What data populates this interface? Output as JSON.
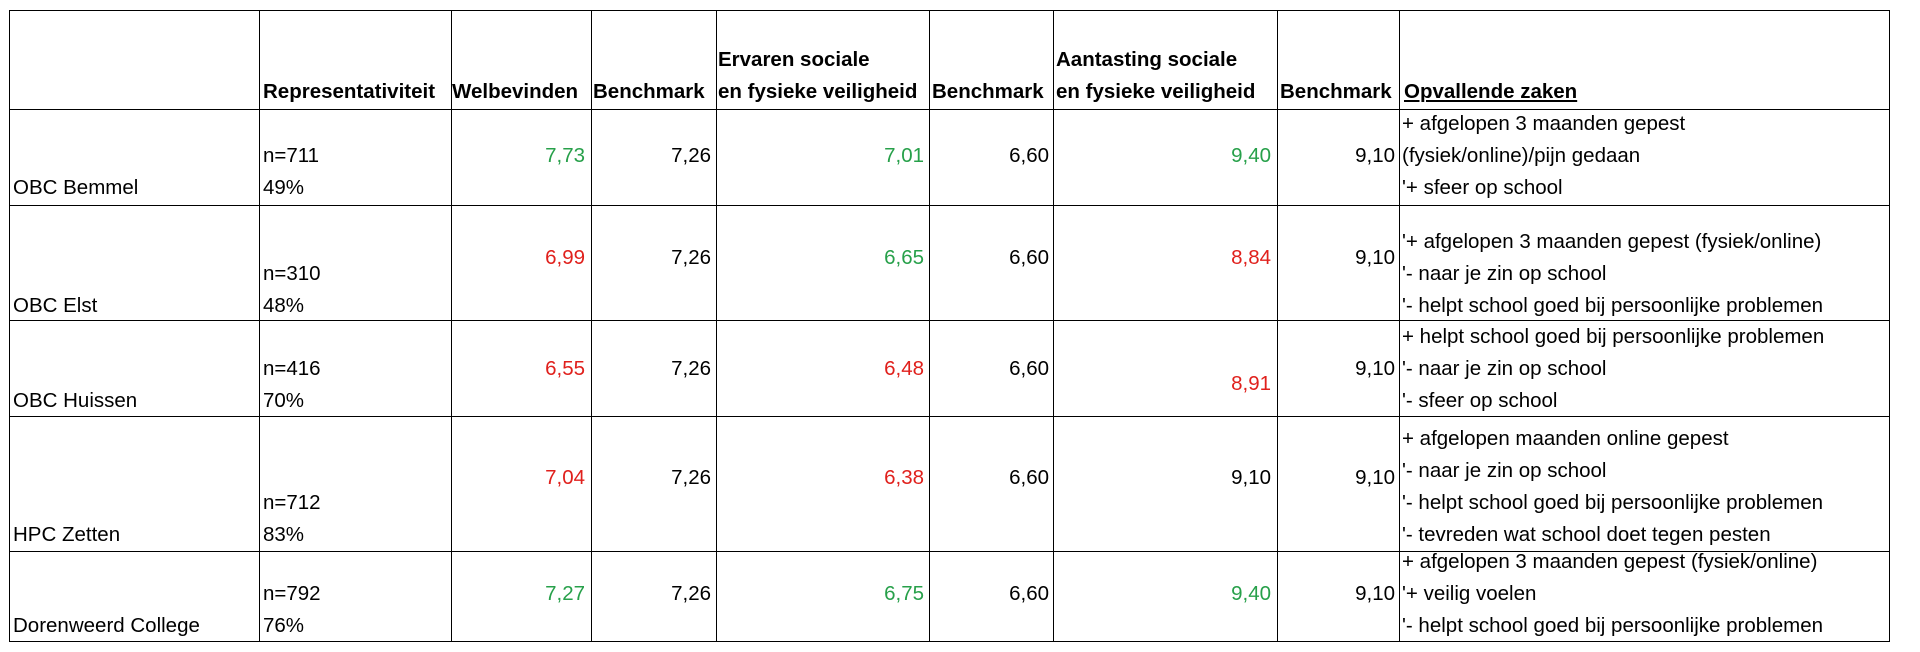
{
  "header": {
    "representativiteit": "Representativiteit",
    "welbevinden": "Welbevinden",
    "benchmark1": "Benchmark",
    "ervaren_line1": "Ervaren sociale",
    "ervaren_line2": "en fysieke veiligheid",
    "benchmark2": "Benchmark",
    "aantasting_line1": "Aantasting sociale",
    "aantasting_line2": "en fysieke veiligheid",
    "benchmark3": "Benchmark",
    "opvallende": "Opvallende zaken"
  },
  "colors": {
    "good": "#27a04a",
    "bad": "#e0201c",
    "neutral": "#000000"
  },
  "rows": [
    {
      "school": "OBC Bemmel",
      "n": "n=711",
      "pct": "49%",
      "welbevinden": "7,73",
      "welbevinden_status": "good",
      "bench1": "7,26",
      "ervaren": "7,01",
      "ervaren_status": "good",
      "bench2": "6,60",
      "aantasting": "9,40",
      "aantasting_status": "good",
      "bench3": "9,10",
      "notes": [
        "+ afgelopen 3 maanden gepest",
        "(fysiek/online)/pijn gedaan",
        "'+ sfeer op school"
      ]
    },
    {
      "school": "OBC Elst",
      "n": "n=310",
      "pct": "48%",
      "welbevinden": "6,99",
      "welbevinden_status": "bad",
      "bench1": "7,26",
      "ervaren": "6,65",
      "ervaren_status": "good",
      "bench2": "6,60",
      "aantasting": "8,84",
      "aantasting_status": "bad",
      "bench3": "9,10",
      "notes": [
        "'+ afgelopen 3 maanden gepest (fysiek/online)",
        "'- naar je zin op school",
        "'- helpt school goed bij persoonlijke problemen"
      ]
    },
    {
      "school": "OBC Huissen",
      "n": "n=416",
      "pct": "70%",
      "welbevinden": "6,55",
      "welbevinden_status": "bad",
      "bench1": "7,26",
      "ervaren": "6,48",
      "ervaren_status": "bad",
      "bench2": "6,60",
      "aantasting": "8,91",
      "aantasting_status": "bad",
      "bench3": "9,10",
      "notes": [
        "+ helpt school goed bij persoonlijke problemen",
        "'- naar je zin op school",
        "'- sfeer op school"
      ]
    },
    {
      "school": "HPC Zetten",
      "n": "n=712",
      "pct": "83%",
      "welbevinden": "7,04",
      "welbevinden_status": "bad",
      "bench1": "7,26",
      "ervaren": "6,38",
      "ervaren_status": "bad",
      "bench2": "6,60",
      "aantasting": "9,10",
      "aantasting_status": "neutral",
      "bench3": "9,10",
      "notes": [
        "+ afgelopen maanden online gepest",
        " '- naar je zin op school",
        "'- helpt school goed bij persoonlijke problemen",
        "'- tevreden wat school doet tegen pesten"
      ]
    },
    {
      "school": "Dorenweerd College",
      "n": "n=792",
      "pct": "76%",
      "welbevinden": "7,27",
      "welbevinden_status": "good",
      "bench1": "7,26",
      "ervaren": "6,75",
      "ervaren_status": "good",
      "bench2": "6,60",
      "aantasting": "9,40",
      "aantasting_status": "good",
      "bench3": "9,10",
      "notes": [
        "+ afgelopen 3 maanden gepest (fysiek/online)",
        "'+ veilig voelen",
        "'- helpt school goed bij persoonlijke problemen"
      ]
    }
  ]
}
